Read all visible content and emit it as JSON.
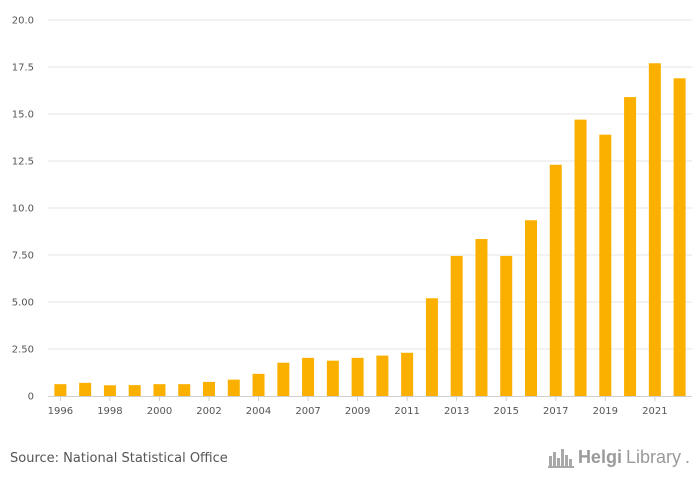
{
  "chart_data": {
    "type": "bar",
    "categories": [
      "1996",
      "1997",
      "1998",
      "1999",
      "2000",
      "2001",
      "2002",
      "2003",
      "2004",
      "2005",
      "2007",
      "2008",
      "2009",
      "2010",
      "2011",
      "2012",
      "2013",
      "2014",
      "2015",
      "2016",
      "2017",
      "2018",
      "2019",
      "2020",
      "2021",
      "2022"
    ],
    "x_tick_labels": [
      "1996",
      "1998",
      "2000",
      "2002",
      "2004",
      "2007",
      "2009",
      "2011",
      "2013",
      "2015",
      "2017",
      "2019",
      "2021"
    ],
    "values": [
      0.63,
      0.7,
      0.57,
      0.58,
      0.63,
      0.63,
      0.75,
      0.87,
      1.18,
      1.77,
      2.03,
      1.88,
      2.03,
      2.15,
      2.3,
      5.2,
      7.45,
      8.35,
      7.45,
      9.35,
      12.3,
      14.7,
      13.9,
      15.9,
      17.7,
      16.9
    ],
    "y_ticks": [
      "0",
      "2.50",
      "5.00",
      "7.50",
      "10.0",
      "12.5",
      "15.0",
      "17.5",
      "20.0"
    ],
    "ylim": [
      0,
      20
    ],
    "grid": true,
    "bar_color": "#FBB000",
    "title": "",
    "xlabel": "",
    "ylabel": ""
  },
  "footer": {
    "source": "Source: National Statistical Office",
    "brand_bold": "Helgi",
    "brand_light": "Library",
    "brand_dot": ".",
    "brand_icon": "city-skyline-icon"
  }
}
